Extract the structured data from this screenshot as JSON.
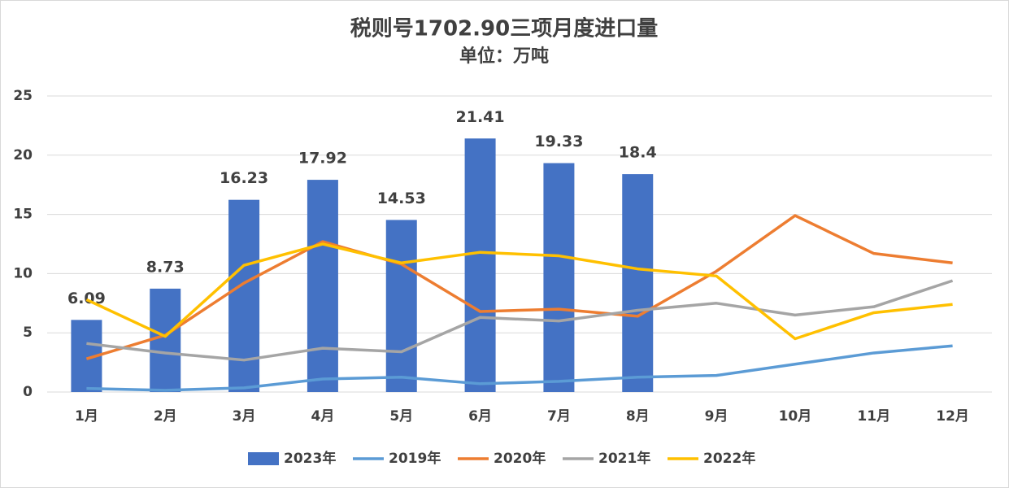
{
  "chart_data": {
    "type": "combo",
    "title": "税则号1702.90三项月度进口量",
    "subtitle": "单位：万吨",
    "categories": [
      "1月",
      "2月",
      "3月",
      "4月",
      "5月",
      "6月",
      "7月",
      "8月",
      "9月",
      "10月",
      "11月",
      "12月"
    ],
    "series": [
      {
        "name": "2023年",
        "type": "bar",
        "color": "#4472c4",
        "values": [
          6.09,
          8.73,
          16.23,
          17.92,
          14.53,
          21.41,
          19.33,
          18.4,
          null,
          null,
          null,
          null
        ]
      },
      {
        "name": "2019年",
        "type": "line",
        "color": "#5b9bd5",
        "values": [
          0.3,
          0.15,
          0.35,
          1.1,
          1.25,
          0.7,
          0.9,
          1.25,
          1.4,
          2.35,
          3.3,
          3.9
        ]
      },
      {
        "name": "2020年",
        "type": "line",
        "color": "#ed7d31",
        "values": [
          2.8,
          4.8,
          9.2,
          12.7,
          10.8,
          6.8,
          7.0,
          6.4,
          10.2,
          14.9,
          11.7,
          10.9
        ]
      },
      {
        "name": "2021年",
        "type": "line",
        "color": "#a5a5a5",
        "values": [
          4.1,
          3.3,
          2.7,
          3.7,
          3.4,
          6.3,
          6.0,
          6.9,
          7.5,
          6.5,
          7.2,
          9.4
        ]
      },
      {
        "name": "2022年",
        "type": "line",
        "color": "#ffc000",
        "values": [
          7.8,
          4.7,
          10.7,
          12.5,
          10.9,
          11.8,
          11.5,
          10.4,
          9.8,
          4.5,
          6.7,
          7.4
        ]
      }
    ],
    "ylim": [
      0,
      25
    ],
    "yticks": [
      0,
      5,
      10,
      15,
      20,
      25
    ],
    "grid": true,
    "legend": "bottom"
  }
}
